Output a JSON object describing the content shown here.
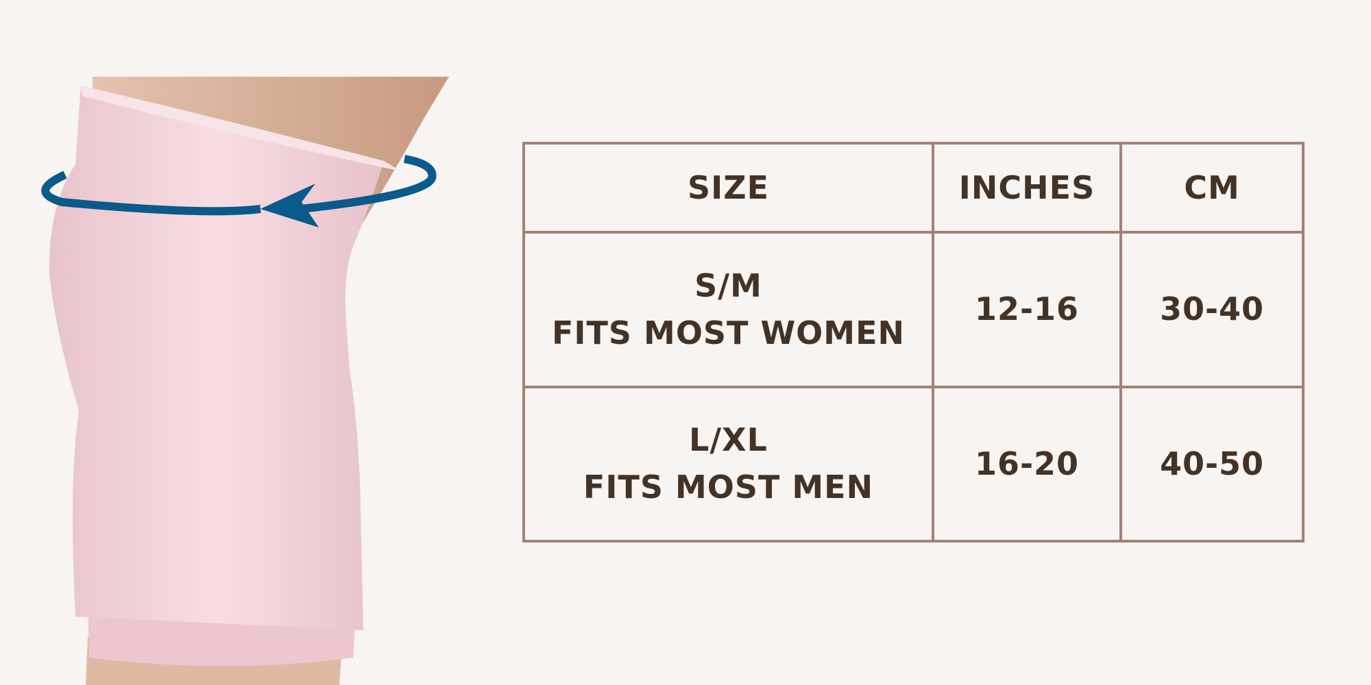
{
  "colors": {
    "background": "#f7f4f1",
    "border": "#a57f78",
    "text": "#433226",
    "sleeve": "#f3d3da",
    "arrow": "#0a5a8a",
    "skin": "#d8b29a"
  },
  "illustration": {
    "icon": "knee-sleeve-with-circumference-arrow"
  },
  "table": {
    "headers": [
      "SIZE",
      "INCHES",
      "CM"
    ],
    "rows": [
      {
        "size": "S/M",
        "fit": "FITS MOST WOMEN",
        "inches": "12-16",
        "cm": "30-40"
      },
      {
        "size": "L/XL",
        "fit": "FITS MOST MEN",
        "inches": "16-20",
        "cm": "40-50"
      }
    ]
  }
}
